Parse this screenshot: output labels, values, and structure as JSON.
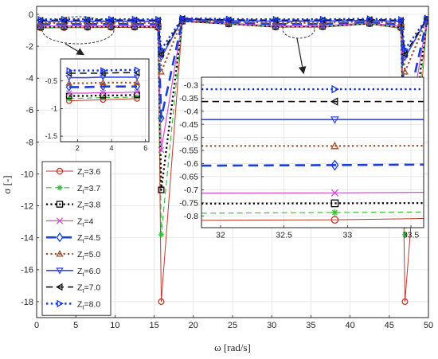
{
  "chart_data": [
    {
      "type": "line",
      "xlabel": "ω [rad/s]",
      "ylabel": "σ [-]",
      "xlim": [
        0,
        50
      ],
      "ylim": [
        -19,
        0.5
      ],
      "xticks": [
        0,
        5,
        10,
        15,
        20,
        25,
        30,
        35,
        40,
        45,
        50
      ],
      "yticks": [
        0,
        -2,
        -4,
        -6,
        -8,
        -10,
        -12,
        -14,
        -16,
        -18
      ],
      "grid": true,
      "legend_position": "bottom-left",
      "x": [
        0.5,
        3.5,
        6.5,
        9.5,
        12.5,
        15.5,
        15.9,
        18.6,
        24.5,
        30.5,
        36.5,
        42.5,
        46.5,
        47.0,
        49.8
      ],
      "series": [
        {
          "name": "Z_t=3.6",
          "color": "#c0392b",
          "marker": "circle",
          "dash": "solid",
          "width": 1,
          "values": [
            -0.85,
            -0.84,
            -0.83,
            -0.82,
            -0.82,
            -0.84,
            -18.0,
            -0.45,
            -0.62,
            -0.81,
            -0.8,
            -0.6,
            -0.88,
            -18.0,
            -0.45
          ]
        },
        {
          "name": "Z_t=3.7",
          "color": "#3cbf3c",
          "marker": "star",
          "dash": "dashed",
          "width": 1.2,
          "values": [
            -0.82,
            -0.81,
            -0.8,
            -0.79,
            -0.79,
            -0.8,
            -13.8,
            -0.44,
            -0.6,
            -0.79,
            -0.78,
            -0.58,
            -0.85,
            -13.8,
            -0.44
          ]
        },
        {
          "name": "Z_t=3.8",
          "color": "#000000",
          "marker": "square",
          "dash": "dotted",
          "width": 2.2,
          "values": [
            -0.78,
            -0.77,
            -0.76,
            -0.76,
            -0.76,
            -0.77,
            -11.0,
            -0.42,
            -0.58,
            -0.755,
            -0.75,
            -0.56,
            -0.8,
            -11.0,
            -0.42
          ]
        },
        {
          "name": "Z_t=4",
          "color": "#d04fd0",
          "marker": "x",
          "dash": "solid",
          "width": 1.2,
          "values": [
            -0.73,
            -0.72,
            -0.72,
            -0.71,
            -0.71,
            -0.72,
            -8.5,
            -0.4,
            -0.55,
            -0.715,
            -0.71,
            -0.53,
            -0.75,
            -8.5,
            -0.4
          ]
        },
        {
          "name": "Z_t=4.5",
          "color": "#1a3fd6",
          "marker": "diamond",
          "dash": "dashed",
          "width": 2.6,
          "values": [
            -0.62,
            -0.62,
            -0.61,
            -0.61,
            -0.61,
            -0.62,
            -6.5,
            -0.37,
            -0.5,
            -0.61,
            -0.6,
            -0.48,
            -0.64,
            -6.5,
            -0.37
          ]
        },
        {
          "name": "Z_t=5.0",
          "color": "#a0522d",
          "marker": "triangle-up",
          "dash": "dotted",
          "width": 2.2,
          "values": [
            -0.55,
            -0.54,
            -0.54,
            -0.53,
            -0.53,
            -0.54,
            -3.6,
            -0.34,
            -0.46,
            -0.535,
            -0.53,
            -0.44,
            -0.56,
            -3.6,
            -0.34
          ]
        },
        {
          "name": "Z_t=6.0",
          "color": "#3a48e0",
          "marker": "triangle-down",
          "dash": "solid",
          "width": 1.6,
          "values": [
            -0.45,
            -0.44,
            -0.44,
            -0.44,
            -0.44,
            -0.44,
            -2.7,
            -0.3,
            -0.4,
            -0.435,
            -0.43,
            -0.38,
            -0.46,
            -2.7,
            -0.3
          ]
        },
        {
          "name": "Z_t=7.0",
          "color": "#111111",
          "marker": "triangle-left",
          "dash": "dashed",
          "width": 1.6,
          "values": [
            -0.37,
            -0.37,
            -0.36,
            -0.36,
            -0.36,
            -0.37,
            -2.5,
            -0.27,
            -0.35,
            -0.365,
            -0.36,
            -0.33,
            -0.38,
            -2.5,
            -0.27
          ]
        },
        {
          "name": "Z_t=8.0",
          "color": "#1230e8",
          "marker": "triangle-right",
          "dash": "dotted",
          "width": 2.4,
          "values": [
            -0.32,
            -0.31,
            -0.31,
            -0.31,
            -0.31,
            -0.32,
            -2.2,
            -0.24,
            -0.3,
            -0.315,
            -0.31,
            -0.28,
            -0.33,
            -2.2,
            -0.24
          ]
        }
      ]
    },
    {
      "type": "line",
      "xlim": [
        1,
        6.2
      ],
      "ylim": [
        -1.6,
        -0.1
      ],
      "xticks": [
        2,
        4,
        6
      ],
      "yticks": [
        -0.5,
        -1,
        -1.5
      ],
      "x": [
        1.5,
        2.5,
        3.5,
        4.5,
        5.5
      ],
      "series": [
        {
          "values": [
            -0.86,
            -0.85,
            -0.84,
            -0.83,
            -0.82
          ]
        },
        {
          "values": [
            -0.82,
            -0.81,
            -0.8,
            -0.8,
            -0.79
          ]
        },
        {
          "values": [
            -0.77,
            -0.77,
            -0.76,
            -0.76,
            -0.75
          ]
        },
        {
          "values": [
            -0.72,
            -0.72,
            -0.71,
            -0.71,
            -0.7
          ]
        },
        {
          "values": [
            -0.61,
            -0.61,
            -0.6,
            -0.6,
            -0.6
          ]
        },
        {
          "values": [
            -0.54,
            -0.54,
            -0.53,
            -0.53,
            -0.53
          ]
        },
        {
          "values": [
            -0.44,
            -0.44,
            -0.43,
            -0.43,
            -0.43
          ]
        },
        {
          "values": [
            -0.36,
            -0.36,
            -0.36,
            -0.35,
            -0.35
          ]
        },
        {
          "values": [
            -0.31,
            -0.31,
            -0.31,
            -0.3,
            -0.3
          ]
        }
      ]
    },
    {
      "type": "line",
      "xlim": [
        31.85,
        33.6
      ],
      "ylim": [
        -0.845,
        -0.27
      ],
      "xticks": [
        32,
        32.5,
        33,
        33.5
      ],
      "yticks": [
        -0.3,
        -0.35,
        -0.4,
        -0.45,
        -0.5,
        -0.55,
        -0.6,
        -0.65,
        -0.7,
        -0.75,
        -0.8
      ],
      "x": [
        31.85,
        32.9,
        33.6
      ],
      "series": [
        {
          "values": [
            -0.817,
            -0.815,
            -0.81
          ]
        },
        {
          "values": [
            -0.79,
            -0.787,
            -0.785
          ]
        },
        {
          "values": [
            -0.753,
            -0.752,
            -0.751
          ]
        },
        {
          "values": [
            -0.713,
            -0.712,
            -0.71
          ]
        },
        {
          "values": [
            -0.608,
            -0.606,
            -0.604
          ]
        },
        {
          "values": [
            -0.533,
            -0.533,
            -0.532
          ]
        },
        {
          "values": [
            -0.432,
            -0.432,
            -0.432
          ]
        },
        {
          "values": [
            -0.363,
            -0.363,
            -0.363
          ]
        },
        {
          "values": [
            -0.316,
            -0.316,
            -0.316
          ]
        }
      ]
    }
  ]
}
